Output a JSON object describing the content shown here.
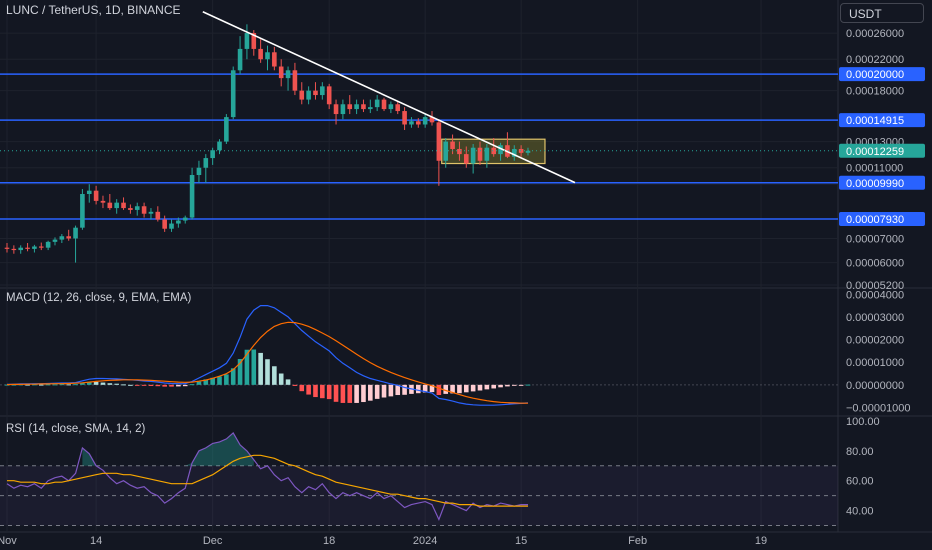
{
  "header": {
    "symbol_title": "LUNC / TetherUS, 1D, BINANCE"
  },
  "currency_button": {
    "label": "USDT"
  },
  "indicators": {
    "macd_title": "MACD (12, 26, close, 9, EMA, EMA)",
    "rsi_title": "RSI (14, close, SMA, 14, 2)"
  },
  "colors": {
    "background": "#131722",
    "up": "#26a69a",
    "down": "#ef5350",
    "level_line": "#2962ff",
    "trendline": "#ffffff",
    "box_fill": "#6b6a2a",
    "box_border": "#e0c36a",
    "macd_line": "#2962ff",
    "signal_line": "#ff6d00",
    "rsi_line": "#7e57c2",
    "rsi_ma": "#f7a600",
    "last_price_label": "#26a69a"
  },
  "chart_data": [
    {
      "type": "candlestick",
      "title": "LUNC / TetherUS, 1D, BINANCE",
      "price_axis_ticks": [
        "0.00026000",
        "0.00022000",
        "0.00018000",
        "0.00013000",
        "0.00011000",
        "0.00009900",
        "0.00007000",
        "0.00006000",
        "0.00005200"
      ],
      "price_range": [
        5.2e-05,
        0.00029
      ],
      "horizontal_levels": [
        "0.00020000",
        "0.00014915",
        "0.00009990",
        "0.00007930"
      ],
      "last_price": "0.00012259",
      "x_axis_ticks": [
        "Nov",
        "14",
        "Dec",
        "18",
        "2024",
        "15",
        "Feb",
        "19"
      ],
      "trendline": {
        "from": {
          "date": "2023-11-30",
          "price": 0.000298
        },
        "to": {
          "date": "2024-01-16",
          "price": 0.0001
        }
      },
      "consolidation_box": {
        "from_date": "2024-01-04",
        "to_date": "2024-01-16",
        "high": 0.000132,
        "low": 0.000113
      },
      "candles": [
        {
          "d": "2023-11-01",
          "o": 6.6e-05,
          "h": 6.8e-05,
          "l": 6.4e-05,
          "c": 6.55e-05
        },
        {
          "d": "2023-11-02",
          "o": 6.55e-05,
          "h": 6.7e-05,
          "l": 6.35e-05,
          "c": 6.5e-05
        },
        {
          "d": "2023-11-03",
          "o": 6.5e-05,
          "h": 6.7e-05,
          "l": 6.35e-05,
          "c": 6.6e-05
        },
        {
          "d": "2023-11-04",
          "o": 6.6e-05,
          "h": 6.8e-05,
          "l": 6.45e-05,
          "c": 6.55e-05
        },
        {
          "d": "2023-11-05",
          "o": 6.55e-05,
          "h": 6.72e-05,
          "l": 6.4e-05,
          "c": 6.65e-05
        },
        {
          "d": "2023-11-06",
          "o": 6.65e-05,
          "h": 6.82e-05,
          "l": 6.5e-05,
          "c": 6.6e-05
        },
        {
          "d": "2023-11-07",
          "o": 6.6e-05,
          "h": 6.9e-05,
          "l": 6.5e-05,
          "c": 6.85e-05
        },
        {
          "d": "2023-11-08",
          "o": 6.85e-05,
          "h": 7.05e-05,
          "l": 6.7e-05,
          "c": 6.95e-05
        },
        {
          "d": "2023-11-09",
          "o": 6.95e-05,
          "h": 7.2e-05,
          "l": 6.8e-05,
          "c": 7.1e-05
        },
        {
          "d": "2023-11-10",
          "o": 7.1e-05,
          "h": 7.4e-05,
          "l": 6.9e-05,
          "c": 7e-05
        },
        {
          "d": "2023-11-11",
          "o": 7e-05,
          "h": 7.6e-05,
          "l": 6e-05,
          "c": 7.5e-05
        },
        {
          "d": "2023-11-12",
          "o": 7.5e-05,
          "h": 9.6e-05,
          "l": 7.4e-05,
          "c": 9.3e-05
        },
        {
          "d": "2023-11-13",
          "o": 9.3e-05,
          "h": 9.9e-05,
          "l": 8.8e-05,
          "c": 9.5e-05
        },
        {
          "d": "2023-11-14",
          "o": 9.5e-05,
          "h": 9.8e-05,
          "l": 8.7e-05,
          "c": 8.9e-05
        },
        {
          "d": "2023-11-15",
          "o": 8.9e-05,
          "h": 9.2e-05,
          "l": 8.5e-05,
          "c": 8.8e-05
        },
        {
          "d": "2023-11-16",
          "o": 8.8e-05,
          "h": 9.3e-05,
          "l": 8.4e-05,
          "c": 8.5e-05
        },
        {
          "d": "2023-11-17",
          "o": 8.5e-05,
          "h": 9e-05,
          "l": 8.2e-05,
          "c": 8.8e-05
        },
        {
          "d": "2023-11-18",
          "o": 8.8e-05,
          "h": 9.1e-05,
          "l": 8.4e-05,
          "c": 8.5e-05
        },
        {
          "d": "2023-11-19",
          "o": 8.5e-05,
          "h": 8.7e-05,
          "l": 8.2e-05,
          "c": 8.4e-05
        },
        {
          "d": "2023-11-20",
          "o": 8.4e-05,
          "h": 8.8e-05,
          "l": 8.1e-05,
          "c": 8.6e-05
        },
        {
          "d": "2023-11-21",
          "o": 8.6e-05,
          "h": 8.8e-05,
          "l": 8e-05,
          "c": 8.2e-05
        },
        {
          "d": "2023-11-22",
          "o": 8.2e-05,
          "h": 8.5e-05,
          "l": 7.9e-05,
          "c": 8.3e-05
        },
        {
          "d": "2023-11-23",
          "o": 8.3e-05,
          "h": 8.6e-05,
          "l": 7.8e-05,
          "c": 7.9e-05
        },
        {
          "d": "2023-11-24",
          "o": 7.9e-05,
          "h": 8.1e-05,
          "l": 7.3e-05,
          "c": 7.45e-05
        },
        {
          "d": "2023-11-25",
          "o": 7.45e-05,
          "h": 7.9e-05,
          "l": 7.3e-05,
          "c": 7.7e-05
        },
        {
          "d": "2023-11-26",
          "o": 7.7e-05,
          "h": 8e-05,
          "l": 7.5e-05,
          "c": 7.85e-05
        },
        {
          "d": "2023-11-27",
          "o": 7.85e-05,
          "h": 8.1e-05,
          "l": 7.7e-05,
          "c": 8e-05
        },
        {
          "d": "2023-11-28",
          "o": 8e-05,
          "h": 0.00011,
          "l": 7.9e-05,
          "c": 0.000105
        },
        {
          "d": "2023-11-29",
          "o": 0.000105,
          "h": 0.000115,
          "l": 0.0001,
          "c": 0.00011
        },
        {
          "d": "2023-11-30",
          "o": 0.00011,
          "h": 0.00012,
          "l": 0.0001,
          "c": 0.000117
        },
        {
          "d": "2023-12-01",
          "o": 0.000117,
          "h": 0.000125,
          "l": 0.000112,
          "c": 0.000123
        },
        {
          "d": "2023-12-02",
          "o": 0.000123,
          "h": 0.000132,
          "l": 0.00012,
          "c": 0.00013
        },
        {
          "d": "2023-12-03",
          "o": 0.00013,
          "h": 0.000155,
          "l": 0.000128,
          "c": 0.000152
        },
        {
          "d": "2023-12-04",
          "o": 0.000152,
          "h": 0.00021,
          "l": 0.00015,
          "c": 0.000205
        },
        {
          "d": "2023-12-05",
          "o": 0.000205,
          "h": 0.000255,
          "l": 0.0002,
          "c": 0.000235
        },
        {
          "d": "2023-12-06",
          "o": 0.000235,
          "h": 0.000275,
          "l": 0.00022,
          "c": 0.00026
        },
        {
          "d": "2023-12-07",
          "o": 0.00026,
          "h": 0.000265,
          "l": 0.000225,
          "c": 0.000235
        },
        {
          "d": "2023-12-08",
          "o": 0.000235,
          "h": 0.00025,
          "l": 0.000215,
          "c": 0.00022
        },
        {
          "d": "2023-12-09",
          "o": 0.00022,
          "h": 0.00024,
          "l": 0.000205,
          "c": 0.00023
        },
        {
          "d": "2023-12-10",
          "o": 0.00023,
          "h": 0.000238,
          "l": 0.000205,
          "c": 0.00021
        },
        {
          "d": "2023-12-11",
          "o": 0.00021,
          "h": 0.00022,
          "l": 0.000185,
          "c": 0.000195
        },
        {
          "d": "2023-12-12",
          "o": 0.000195,
          "h": 0.00021,
          "l": 0.00018,
          "c": 0.000205
        },
        {
          "d": "2023-12-13",
          "o": 0.000205,
          "h": 0.000215,
          "l": 0.000175,
          "c": 0.00018
        },
        {
          "d": "2023-12-14",
          "o": 0.00018,
          "h": 0.00019,
          "l": 0.000165,
          "c": 0.00017
        },
        {
          "d": "2023-12-15",
          "o": 0.00017,
          "h": 0.000185,
          "l": 0.000165,
          "c": 0.00018
        },
        {
          "d": "2023-12-16",
          "o": 0.00018,
          "h": 0.00019,
          "l": 0.00017,
          "c": 0.000175
        },
        {
          "d": "2023-12-17",
          "o": 0.000175,
          "h": 0.00019,
          "l": 0.00017,
          "c": 0.000185
        },
        {
          "d": "2023-12-18",
          "o": 0.000185,
          "h": 0.000188,
          "l": 0.00016,
          "c": 0.000165
        },
        {
          "d": "2023-12-19",
          "o": 0.000165,
          "h": 0.00017,
          "l": 0.000145,
          "c": 0.000155
        },
        {
          "d": "2023-12-20",
          "o": 0.000155,
          "h": 0.00017,
          "l": 0.00015,
          "c": 0.000165
        },
        {
          "d": "2023-12-21",
          "o": 0.000165,
          "h": 0.000175,
          "l": 0.000155,
          "c": 0.00016
        },
        {
          "d": "2023-12-22",
          "o": 0.00016,
          "h": 0.00017,
          "l": 0.000155,
          "c": 0.000165
        },
        {
          "d": "2023-12-23",
          "o": 0.000165,
          "h": 0.00017,
          "l": 0.000157,
          "c": 0.00016
        },
        {
          "d": "2023-12-24",
          "o": 0.00016,
          "h": 0.00017,
          "l": 0.000156,
          "c": 0.000162
        },
        {
          "d": "2023-12-25",
          "o": 0.000162,
          "h": 0.000175,
          "l": 0.000158,
          "c": 0.00017
        },
        {
          "d": "2023-12-26",
          "o": 0.00017,
          "h": 0.000172,
          "l": 0.000158,
          "c": 0.00016
        },
        {
          "d": "2023-12-27",
          "o": 0.00016,
          "h": 0.000168,
          "l": 0.000156,
          "c": 0.000165
        },
        {
          "d": "2023-12-28",
          "o": 0.000165,
          "h": 0.000168,
          "l": 0.000155,
          "c": 0.000158
        },
        {
          "d": "2023-12-29",
          "o": 0.000158,
          "h": 0.000162,
          "l": 0.00014,
          "c": 0.000145
        },
        {
          "d": "2023-12-30",
          "o": 0.000145,
          "h": 0.000152,
          "l": 0.000142,
          "c": 0.000148
        },
        {
          "d": "2023-12-31",
          "o": 0.000148,
          "h": 0.000151,
          "l": 0.000142,
          "c": 0.000145
        },
        {
          "d": "2024-01-01",
          "o": 0.000145,
          "h": 0.000155,
          "l": 0.000142,
          "c": 0.000152
        },
        {
          "d": "2024-01-02",
          "o": 0.000152,
          "h": 0.000158,
          "l": 0.000144,
          "c": 0.000147
        },
        {
          "d": "2024-01-03",
          "o": 0.000147,
          "h": 0.00015,
          "l": 9.8e-05,
          "c": 0.000115
        },
        {
          "d": "2024-01-04",
          "o": 0.000115,
          "h": 0.000133,
          "l": 0.00011,
          "c": 0.00013
        },
        {
          "d": "2024-01-05",
          "o": 0.00013,
          "h": 0.000136,
          "l": 0.00012,
          "c": 0.000124
        },
        {
          "d": "2024-01-06",
          "o": 0.000124,
          "h": 0.00013,
          "l": 0.000115,
          "c": 0.00012
        },
        {
          "d": "2024-01-07",
          "o": 0.00012,
          "h": 0.000126,
          "l": 0.00011,
          "c": 0.000113
        },
        {
          "d": "2024-01-08",
          "o": 0.000113,
          "h": 0.000128,
          "l": 0.000106,
          "c": 0.000125
        },
        {
          "d": "2024-01-09",
          "o": 0.000125,
          "h": 0.00013,
          "l": 0.000112,
          "c": 0.000115
        },
        {
          "d": "2024-01-10",
          "o": 0.000115,
          "h": 0.000128,
          "l": 0.00011,
          "c": 0.000125
        },
        {
          "d": "2024-01-11",
          "o": 0.000125,
          "h": 0.000133,
          "l": 0.000118,
          "c": 0.00012
        },
        {
          "d": "2024-01-12",
          "o": 0.00012,
          "h": 0.000129,
          "l": 0.000115,
          "c": 0.000127
        },
        {
          "d": "2024-01-13",
          "o": 0.000127,
          "h": 0.000138,
          "l": 0.000117,
          "c": 0.000118
        },
        {
          "d": "2024-01-14",
          "o": 0.000118,
          "h": 0.000127,
          "l": 0.000115,
          "c": 0.000124
        },
        {
          "d": "2024-01-15",
          "o": 0.000124,
          "h": 0.000127,
          "l": 0.000118,
          "c": 0.000121
        },
        {
          "d": "2024-01-16",
          "o": 0.000121,
          "h": 0.000125,
          "l": 0.000119,
          "c": 0.0001226
        }
      ]
    },
    {
      "type": "line",
      "title": "MACD (12, 26, close, 9, EMA, EMA)",
      "axis_ticks": [
        "0.00004000",
        "0.00003000",
        "0.00002000",
        "0.00001000",
        "0.00000000",
        "−0.00001000"
      ],
      "range": [
        -1.2e-05,
        4.1e-05
      ],
      "macd": [
        2e-07,
        3e-07,
        4e-07,
        4e-07,
        5e-07,
        5e-07,
        6e-07,
        7e-07,
        8e-07,
        8e-07,
        1e-06,
        1.8e-06,
        2.5e-06,
        2.8e-06,
        2.8e-06,
        2.7e-06,
        2.6e-06,
        2.4e-06,
        2.2e-06,
        2e-06,
        1.7e-06,
        1.5e-06,
        1.2e-06,
        8e-07,
        6e-07,
        5e-07,
        5e-07,
        1.5e-06,
        3e-06,
        4.5e-06,
        6e-06,
        7.5e-06,
        9.5e-06,
        1.4e-05,
        2.1e-05,
        2.9e-05,
        3.3e-05,
        3.5e-05,
        3.5e-05,
        3.4e-05,
        3.2e-05,
        3e-05,
        2.7e-05,
        2.4e-05,
        2.15e-05,
        1.9e-05,
        1.7e-05,
        1.5e-05,
        1.2e-05,
        9.5e-06,
        7.5e-06,
        5.5e-06,
        4e-06,
        2.8e-06,
        2e-06,
        1.2e-06,
        4e-07,
        -2e-07,
        -1.2e-06,
        -1.8e-06,
        -2.4e-06,
        -3e-06,
        -3.6e-06,
        -6e-06,
        -6.5e-06,
        -7.2e-06,
        -8e-06,
        -8.5e-06,
        -8.8e-06,
        -9e-06,
        -9e-06,
        -9e-06,
        -8.8e-06,
        -8.6e-06,
        -8.4e-06,
        -8.2e-06,
        -8e-06
      ],
      "signal": [
        1e-07,
        2e-07,
        2e-07,
        3e-07,
        3e-07,
        4e-07,
        4e-07,
        5e-07,
        5e-07,
        6e-07,
        7e-07,
        9e-07,
        1.2e-06,
        1.5e-06,
        1.8e-06,
        2e-06,
        2.1e-06,
        2.2e-06,
        2.2e-06,
        2.2e-06,
        2.1e-06,
        2e-06,
        1.8e-06,
        1.6e-06,
        1.4e-06,
        1.2e-06,
        1.1e-06,
        1.2e-06,
        1.6e-06,
        2.1e-06,
        2.9e-06,
        3.8e-06,
        4.9e-06,
        6.7e-06,
        9.6e-06,
        1.35e-05,
        1.74e-05,
        2.09e-05,
        2.37e-05,
        2.58e-05,
        2.7e-05,
        2.76e-05,
        2.75e-05,
        2.68e-05,
        2.58e-05,
        2.44e-05,
        2.29e-05,
        2.13e-05,
        1.95e-05,
        1.75e-05,
        1.55e-05,
        1.35e-05,
        1.16e-05,
        9.8e-06,
        8.2e-06,
        6.8e-06,
        5.5e-06,
        4.3e-06,
        3.2e-06,
        2.2e-06,
        1.3e-06,
        4e-07,
        -4e-07,
        -1.5e-06,
        -2.5e-06,
        -3.4e-06,
        -4.3e-06,
        -5.2e-06,
        -5.9e-06,
        -6.5e-06,
        -7e-06,
        -7.4e-06,
        -7.7e-06,
        -7.9e-06,
        -8e-06,
        -8.1e-06,
        -8.1e-06
      ]
    },
    {
      "type": "line",
      "title": "RSI (14, close, SMA, 14, 2)",
      "axis_ticks": [
        "100.00",
        "80.00",
        "60.00",
        "40.00"
      ],
      "range": [
        27,
        102
      ],
      "bands": {
        "upper": 70,
        "middle": 50,
        "lower": 30
      },
      "rsi": [
        58,
        55,
        57,
        56,
        58,
        55,
        60,
        62,
        63,
        60,
        65,
        82,
        78,
        70,
        67,
        62,
        58,
        60,
        57,
        55,
        56,
        52,
        50,
        45,
        48,
        52,
        55,
        72,
        80,
        82,
        85,
        86,
        88,
        92,
        84,
        80,
        74,
        68,
        70,
        64,
        60,
        62,
        56,
        52,
        56,
        54,
        58,
        52,
        48,
        52,
        50,
        52,
        50,
        48,
        52,
        48,
        50,
        46,
        42,
        44,
        45,
        46,
        44,
        34,
        46,
        44,
        42,
        40,
        45,
        42,
        44,
        43,
        45,
        44,
        43,
        44,
        44
      ],
      "rsi_ma": [
        60,
        60,
        59,
        59,
        59,
        58,
        58,
        59,
        59,
        60,
        61,
        62,
        63,
        64,
        65,
        65,
        65,
        64,
        64,
        63,
        62,
        61,
        60,
        59,
        58,
        58,
        58,
        58,
        60,
        62,
        64,
        67,
        70,
        73,
        75,
        76,
        77,
        77,
        76,
        75,
        73,
        71,
        70,
        68,
        66,
        64,
        63,
        61,
        59,
        58,
        57,
        56,
        55,
        54,
        53,
        52,
        51,
        51,
        50,
        49,
        48,
        48,
        47,
        46,
        45,
        45,
        44,
        44,
        44,
        43,
        43,
        43,
        43,
        43,
        43,
        43,
        43
      ]
    }
  ]
}
